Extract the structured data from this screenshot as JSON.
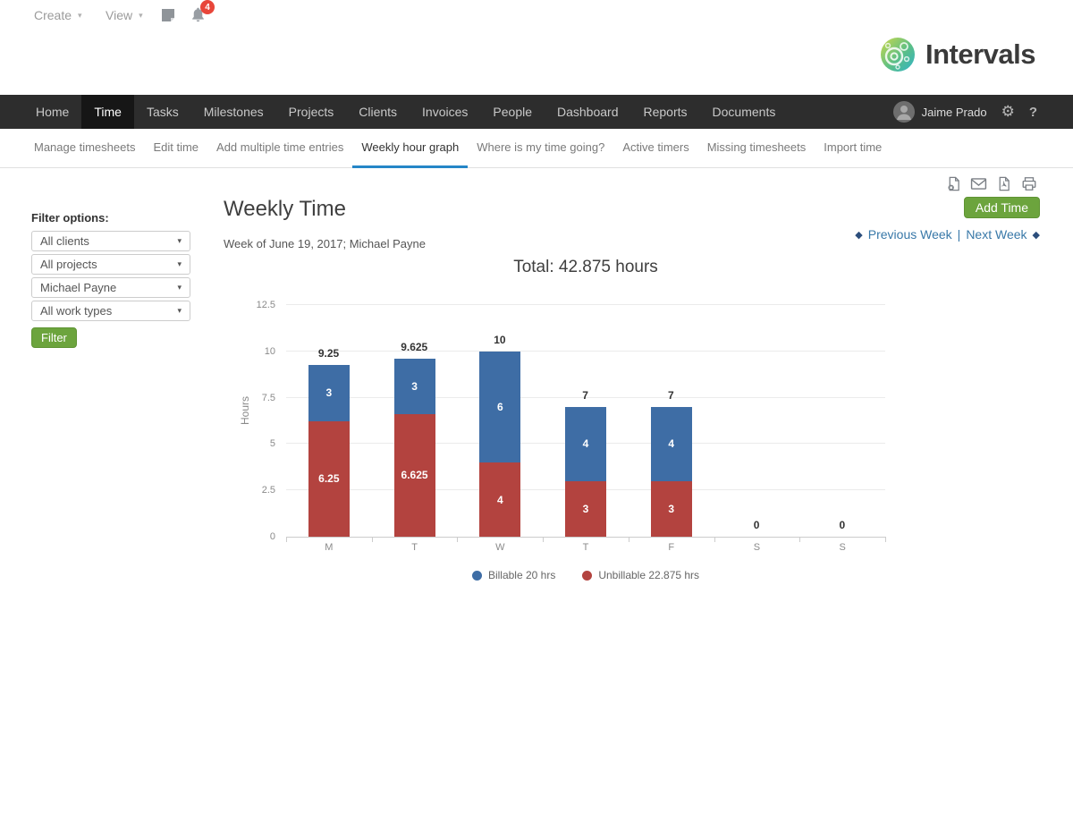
{
  "topbar": {
    "create_label": "Create",
    "view_label": "View",
    "notifications_count": "4"
  },
  "brand": {
    "name": "Intervals"
  },
  "icons": {
    "caret": "▾",
    "gear": "⚙",
    "help": "?",
    "left_diamond": "◆",
    "right_diamond": "◆",
    "separator": "|"
  },
  "nav": {
    "items": [
      {
        "label": "Home"
      },
      {
        "label": "Time"
      },
      {
        "label": "Tasks"
      },
      {
        "label": "Milestones"
      },
      {
        "label": "Projects"
      },
      {
        "label": "Clients"
      },
      {
        "label": "Invoices"
      },
      {
        "label": "People"
      },
      {
        "label": "Dashboard"
      },
      {
        "label": "Reports"
      },
      {
        "label": "Documents"
      }
    ],
    "active": "Time"
  },
  "user": {
    "name": "Jaime Prado"
  },
  "subnav": {
    "items": [
      {
        "label": "Manage timesheets"
      },
      {
        "label": "Edit time"
      },
      {
        "label": "Add multiple time entries"
      },
      {
        "label": "Weekly hour graph"
      },
      {
        "label": "Where is my time going?"
      },
      {
        "label": "Active timers"
      },
      {
        "label": "Missing timesheets"
      },
      {
        "label": "Import time"
      }
    ],
    "active": "Weekly hour graph"
  },
  "filters": {
    "heading": "Filter options:",
    "client_filter": "All clients",
    "project_filter": "All projects",
    "person_filter": "Michael Payne",
    "worktype_filter": "All work types",
    "button_label": "Filter"
  },
  "page": {
    "title": "Weekly Time",
    "subtitle": "Week of June 19, 2017; Michael Payne",
    "add_time_label": "Add Time",
    "prev_week_label": "Previous Week",
    "next_week_label": "Next Week"
  },
  "chart_data": {
    "type": "bar",
    "stacked": true,
    "title": "Total: 42.875 hours",
    "ylabel": "Hours",
    "categories": [
      "M",
      "T",
      "W",
      "T",
      "F",
      "S",
      "S"
    ],
    "series": [
      {
        "name": "Billable",
        "legend": "Billable 20 hrs",
        "color": "#3e6da5",
        "values": [
          3,
          3,
          6,
          4,
          4,
          0,
          0
        ]
      },
      {
        "name": "Unbillable",
        "legend": "Unbillable 22.875 hrs",
        "color": "#b3433f",
        "values": [
          6.25,
          6.625,
          4,
          3,
          3,
          0,
          0
        ]
      }
    ],
    "totals": [
      "9.25",
      "9.625",
      "10",
      "7",
      "7",
      "0",
      "0"
    ],
    "yticks": [
      0,
      2.5,
      5,
      7.5,
      10,
      12.5
    ],
    "ylim": [
      0,
      12.5
    ],
    "grid": true,
    "legend_position": "bottom"
  }
}
